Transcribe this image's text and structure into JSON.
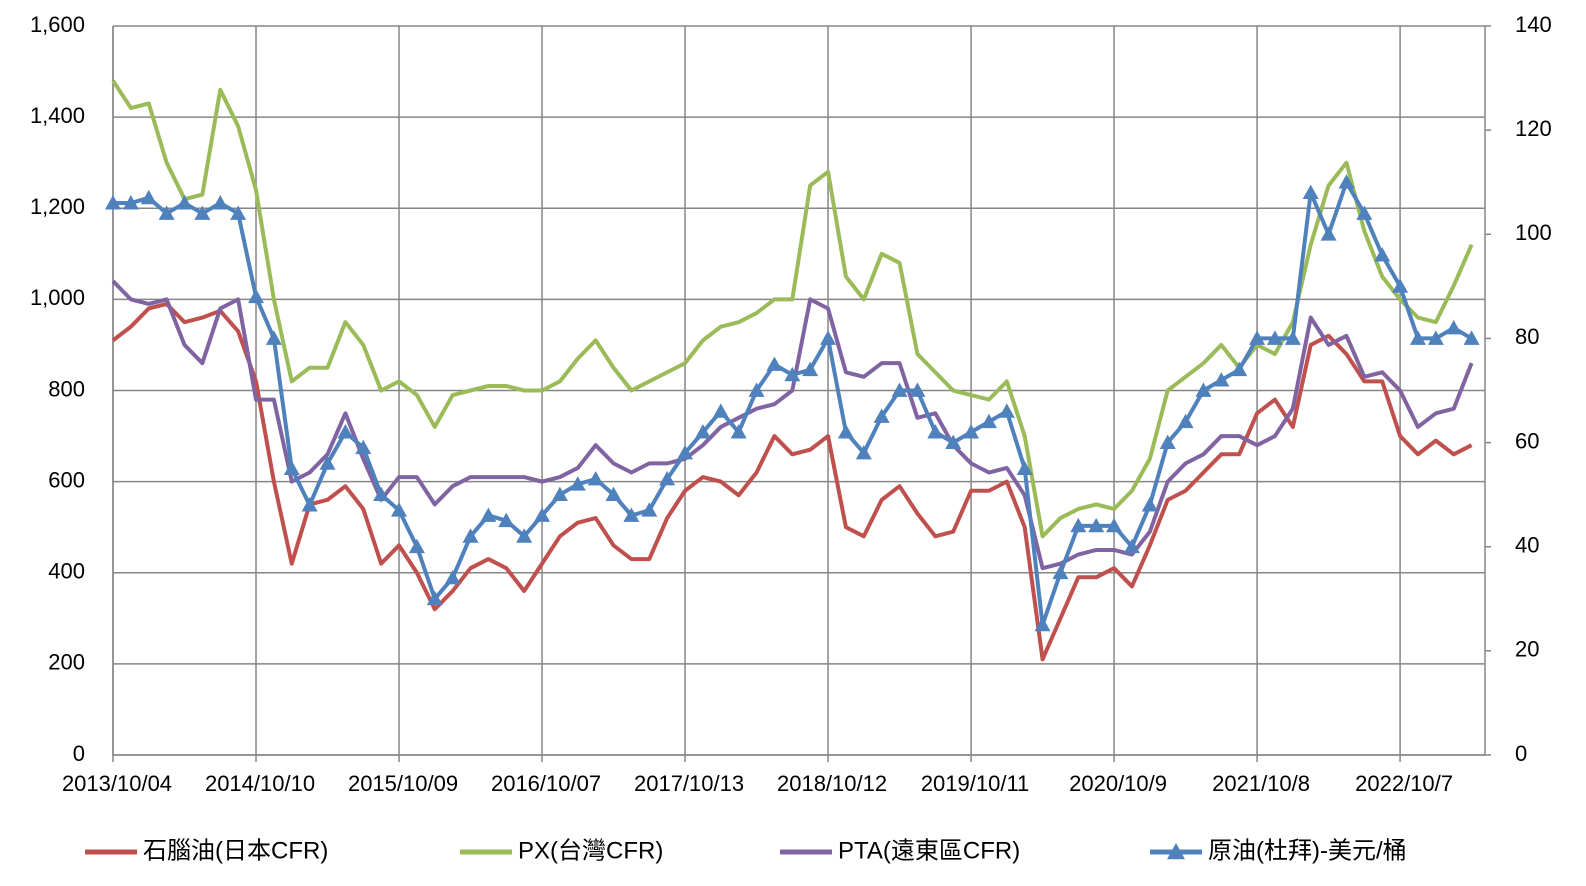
{
  "chart_data": {
    "type": "line",
    "categories": [
      "2013/10/04",
      null,
      null,
      null,
      null,
      null,
      null,
      null,
      "2014/10/10",
      null,
      null,
      null,
      null,
      null,
      null,
      null,
      "2015/10/09",
      null,
      null,
      null,
      null,
      null,
      null,
      null,
      "2016/10/07",
      null,
      null,
      null,
      null,
      null,
      null,
      null,
      "2017/10/13",
      null,
      null,
      null,
      null,
      null,
      null,
      null,
      "2018/10/12",
      null,
      null,
      null,
      null,
      null,
      null,
      null,
      "2019/10/11",
      null,
      null,
      null,
      null,
      null,
      null,
      null,
      "2020/10/9",
      null,
      null,
      null,
      null,
      null,
      null,
      null,
      "2021/10/8",
      null,
      null,
      null,
      null,
      null,
      null,
      null,
      "2022/10/7",
      null,
      null,
      null,
      null
    ],
    "series": [
      {
        "name": "石腦油(日本CFR)",
        "color": "#c0504d",
        "values": [
          910,
          940,
          980,
          990,
          950,
          960,
          975,
          930,
          820,
          600,
          420,
          550,
          560,
          590,
          540,
          420,
          460,
          400,
          320,
          360,
          410,
          430,
          410,
          360,
          420,
          480,
          510,
          520,
          460,
          430,
          430,
          520,
          580,
          610,
          600,
          570,
          620,
          700,
          660,
          670,
          700,
          500,
          480,
          560,
          590,
          530,
          480,
          490,
          580,
          580,
          600,
          500,
          210,
          300,
          390,
          390,
          410,
          370,
          460,
          560,
          580,
          620,
          660,
          660,
          750,
          780,
          720,
          900,
          920,
          880,
          820,
          820,
          700,
          660,
          690,
          660,
          680
        ]
      },
      {
        "name": "PX(台灣CFR)",
        "color": "#9bbb59",
        "values": [
          1480,
          1420,
          1430,
          1300,
          1220,
          1230,
          1460,
          1380,
          1240,
          1000,
          820,
          850,
          850,
          950,
          900,
          800,
          820,
          790,
          720,
          790,
          800,
          810,
          810,
          800,
          800,
          820,
          870,
          910,
          850,
          800,
          820,
          840,
          860,
          910,
          940,
          950,
          970,
          1000,
          1000,
          1250,
          1280,
          1050,
          1000,
          1100,
          1080,
          880,
          840,
          800,
          790,
          780,
          820,
          700,
          480,
          520,
          540,
          550,
          540,
          580,
          650,
          800,
          830,
          860,
          900,
          850,
          900,
          880,
          950,
          1120,
          1250,
          1300,
          1150,
          1050,
          1000,
          960,
          950,
          1030,
          1120
        ]
      },
      {
        "name": "PTA(遠東區CFR)",
        "color": "#8064a2",
        "values": [
          1040,
          1000,
          990,
          1000,
          900,
          860,
          980,
          1000,
          780,
          780,
          600,
          620,
          660,
          750,
          650,
          560,
          610,
          610,
          550,
          590,
          610,
          610,
          610,
          610,
          600,
          610,
          630,
          680,
          640,
          620,
          640,
          640,
          650,
          680,
          720,
          740,
          760,
          770,
          800,
          1000,
          980,
          840,
          830,
          860,
          860,
          740,
          750,
          680,
          640,
          620,
          630,
          570,
          410,
          420,
          440,
          450,
          450,
          440,
          490,
          600,
          640,
          660,
          700,
          700,
          680,
          700,
          760,
          960,
          900,
          920,
          830,
          840,
          800,
          720,
          750,
          760,
          860
        ]
      },
      {
        "name": "原油(杜拜)-美元/桶",
        "color": "#4f81bd",
        "axis": "y2",
        "marker": "triangle",
        "values": [
          106,
          106,
          107,
          104,
          106,
          104,
          106,
          104,
          88,
          80,
          55,
          48,
          56,
          62,
          59,
          50,
          47,
          40,
          30,
          34,
          42,
          46,
          45,
          42,
          46,
          50,
          52,
          53,
          50,
          46,
          47,
          53,
          58,
          62,
          66,
          62,
          70,
          75,
          73,
          74,
          80,
          62,
          58,
          65,
          70,
          70,
          62,
          60,
          62,
          64,
          66,
          55,
          25,
          35,
          44,
          44,
          44,
          40,
          48,
          60,
          64,
          70,
          72,
          74,
          80,
          80,
          80,
          108,
          100,
          110,
          104,
          96,
          90,
          80,
          80,
          82,
          80
        ]
      }
    ],
    "ylim": [
      0,
      1600
    ],
    "yticks": [
      0,
      200,
      400,
      600,
      800,
      {
        "value": 1000,
        "label": "1,000"
      },
      {
        "value": 1200,
        "label": "1,200"
      },
      {
        "value": 1400,
        "label": "1,400"
      },
      {
        "value": 1600,
        "label": "1,600"
      }
    ],
    "y2lim": [
      0,
      140
    ],
    "y2ticks": [
      0,
      20,
      40,
      60,
      80,
      100,
      120,
      140
    ],
    "grid": true,
    "legend": "bottom"
  }
}
